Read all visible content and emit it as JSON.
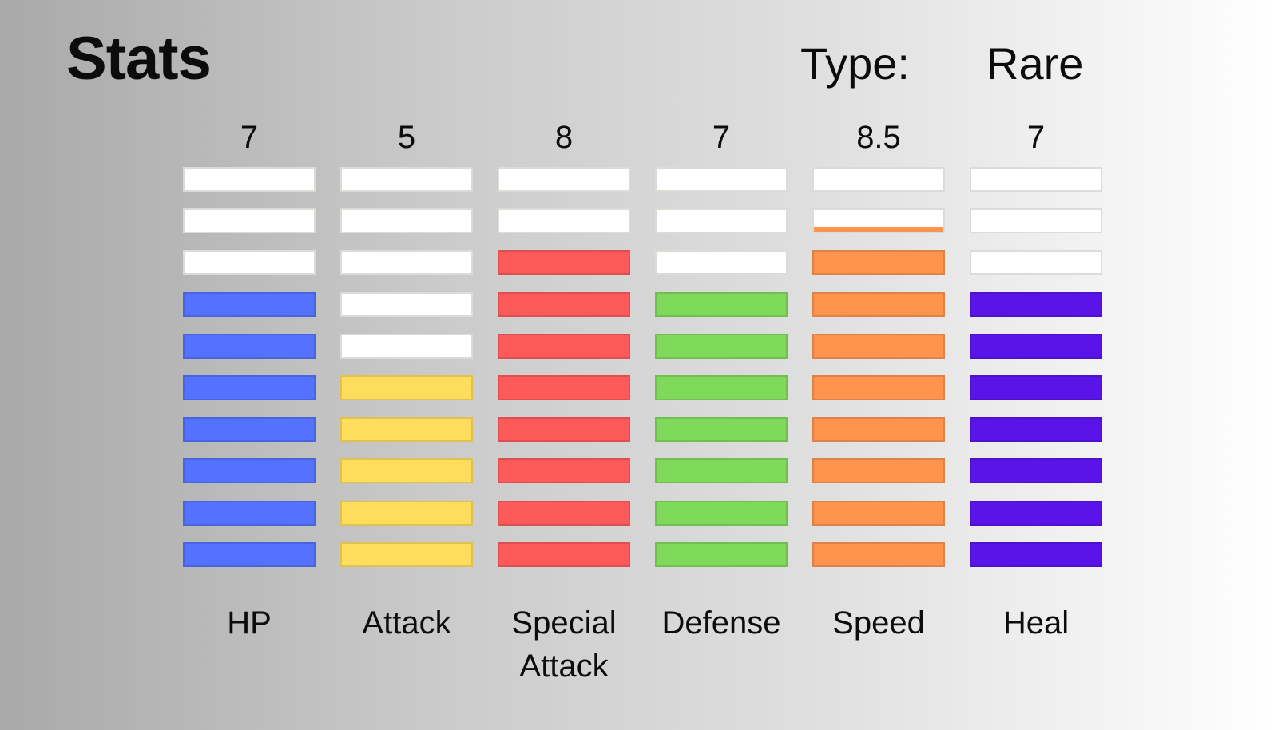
{
  "title": "Stats",
  "type": {
    "label": "Type:",
    "value": "Rare"
  },
  "chart_data": {
    "type": "bar",
    "categories": [
      "HP",
      "Attack",
      "Special Attack",
      "Defense",
      "Speed",
      "Heal"
    ],
    "values": [
      7,
      5,
      8,
      7,
      8.5,
      7
    ],
    "value_labels": [
      "7",
      "5",
      "8",
      "7",
      "8.5",
      "7"
    ],
    "category_labels": [
      "HP",
      "Attack",
      "Special\nAttack",
      "Defense",
      "Speed",
      "Heal"
    ],
    "ylim": [
      0,
      10
    ],
    "segments": 10,
    "colors": [
      "#5472ff",
      "#ffdd5c",
      "#ff5a5a",
      "#7fd95a",
      "#ff944f",
      "#5a14e8"
    ],
    "empty_color": "#ffffff"
  }
}
